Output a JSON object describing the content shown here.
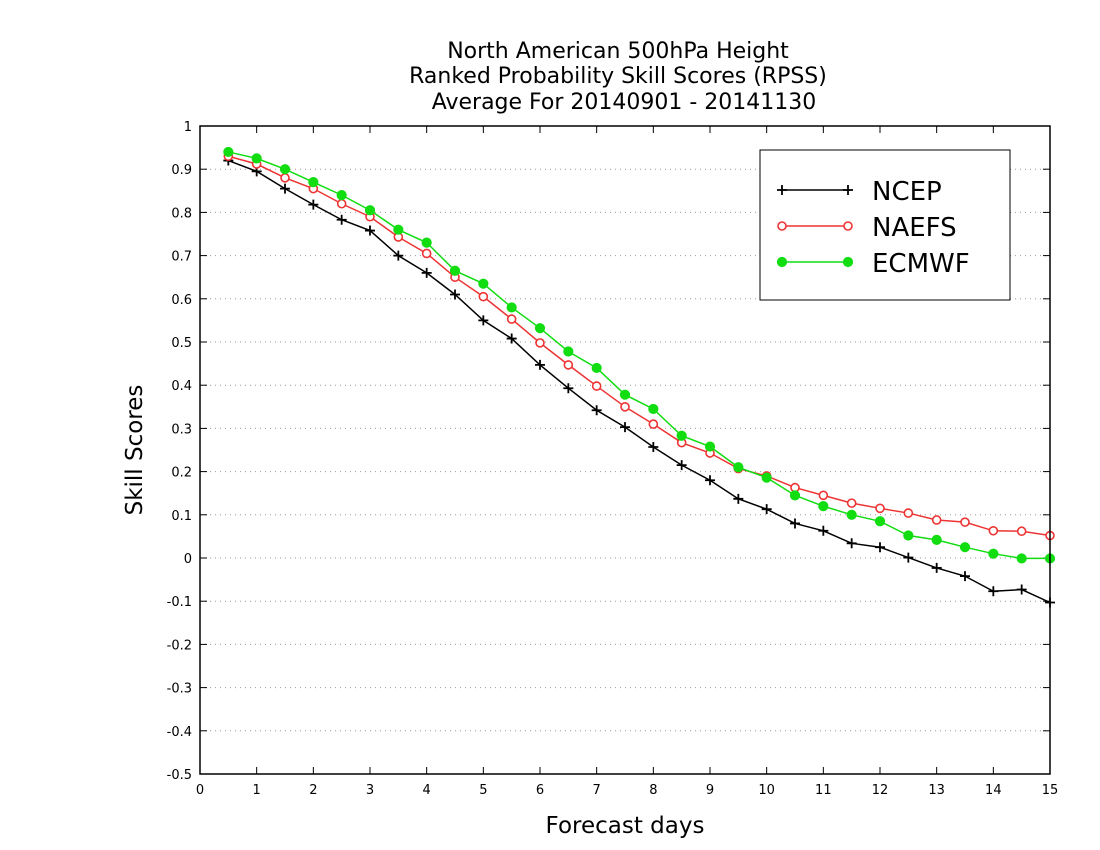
{
  "chart_data": {
    "type": "line",
    "title": [
      "North American 500hPa Height",
      "Ranked Probability Skill Scores (RPSS)",
      "Average For 20140901 - 20141130"
    ],
    "xlabel": "Forecast days",
    "ylabel": "Skill Scores",
    "xlim": [
      0,
      15
    ],
    "ylim": [
      -0.5,
      1
    ],
    "x_ticks": [
      0,
      1,
      2,
      3,
      4,
      5,
      6,
      7,
      8,
      9,
      10,
      11,
      12,
      13,
      14,
      15
    ],
    "x_tick_labels": [
      "0",
      "1",
      "2",
      "3",
      "4",
      "5",
      "6",
      "7",
      "8",
      "9",
      "10",
      "11",
      "12",
      "13",
      "14",
      "15"
    ],
    "y_ticks": [
      -0.5,
      -0.4,
      -0.3,
      -0.2,
      -0.1,
      0,
      0.1,
      0.2,
      0.3,
      0.4,
      0.5,
      0.6,
      0.7,
      0.8,
      0.9,
      1
    ],
    "y_tick_labels": [
      "-0.5",
      "-0.4",
      "-0.3",
      "-0.2",
      "-0.1",
      "0",
      "0.1",
      "0.2",
      "0.3",
      "0.4",
      "0.5",
      "0.6",
      "0.7",
      "0.8",
      "0.9",
      "1"
    ],
    "grid": "horizontal dotted",
    "legend_position": "top-right",
    "x": [
      0.5,
      1,
      1.5,
      2,
      2.5,
      3,
      3.5,
      4,
      4.5,
      5,
      5.5,
      6,
      6.5,
      7,
      7.5,
      8,
      8.5,
      9,
      9.5,
      10,
      10.5,
      11,
      11.5,
      12,
      12.5,
      13,
      13.5,
      14,
      14.5,
      15
    ],
    "series": [
      {
        "name": "NCEP",
        "color": "#000000",
        "marker": "plus",
        "values": [
          0.92,
          0.895,
          0.855,
          0.818,
          0.783,
          0.758,
          0.7,
          0.66,
          0.61,
          0.55,
          0.508,
          0.447,
          0.393,
          0.342,
          0.303,
          0.257,
          0.215,
          0.18,
          0.137,
          0.113,
          0.08,
          0.063,
          0.034,
          0.025,
          0.001,
          -0.023,
          -0.042,
          -0.077,
          -0.073,
          -0.103
        ]
      },
      {
        "name": "NAEFS",
        "color": "#ee3333",
        "marker": "open-circle",
        "values": [
          0.93,
          0.912,
          0.88,
          0.855,
          0.82,
          0.79,
          0.743,
          0.705,
          0.65,
          0.605,
          0.553,
          0.498,
          0.447,
          0.398,
          0.35,
          0.31,
          0.267,
          0.243,
          0.207,
          0.19,
          0.163,
          0.145,
          0.127,
          0.115,
          0.104,
          0.088,
          0.083,
          0.063,
          0.062,
          0.052
        ]
      },
      {
        "name": "ECMWF",
        "color": "#11dd11",
        "marker": "filled-circle",
        "values": [
          0.94,
          0.925,
          0.9,
          0.87,
          0.84,
          0.805,
          0.76,
          0.73,
          0.665,
          0.635,
          0.58,
          0.532,
          0.478,
          0.44,
          0.378,
          0.345,
          0.283,
          0.258,
          0.21,
          0.186,
          0.145,
          0.12,
          0.1,
          0.085,
          0.052,
          0.042,
          0.025,
          0.01,
          -0.001,
          -0.001
        ]
      }
    ]
  }
}
